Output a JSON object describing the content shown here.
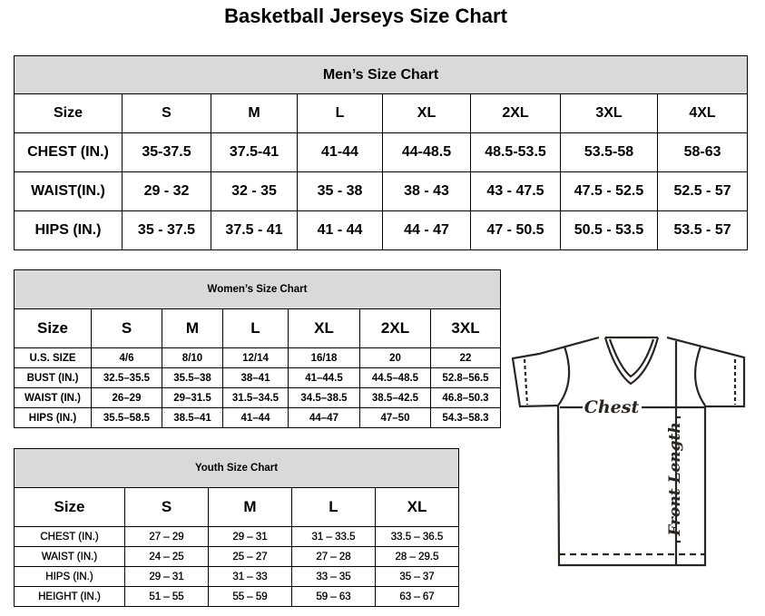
{
  "title": "Basketball Jerseys Size Chart",
  "men": {
    "title": "Men’s Size Chart",
    "header": [
      "Size",
      "S",
      "M",
      "L",
      "XL",
      "2XL",
      "3XL",
      "4XL"
    ],
    "rows": [
      [
        "CHEST (IN.)",
        "35-37.5",
        "37.5-41",
        "41-44",
        "44-48.5",
        "48.5-53.5",
        "53.5-58",
        "58-63"
      ],
      [
        "WAIST(IN.)",
        "29 - 32",
        "32 - 35",
        "35 - 38",
        "38 - 43",
        "43 - 47.5",
        "47.5 - 52.5",
        "52.5 - 57"
      ],
      [
        "HIPS (IN.)",
        "35 - 37.5",
        "37.5 - 41",
        "41 - 44",
        "44 - 47",
        "47 - 50.5",
        "50.5 - 53.5",
        "53.5 - 57"
      ]
    ]
  },
  "women": {
    "title": "Women’s Size Chart",
    "header": [
      "Size",
      "S",
      "M",
      "L",
      "XL",
      "2XL",
      "3XL"
    ],
    "rows": [
      [
        "U.S.  SIZE",
        "4/6",
        "8/10",
        "12/14",
        "16/18",
        "20",
        "22"
      ],
      [
        "BUST  (IN.)",
        "32.5–35.5",
        "35.5–38",
        "38–41",
        "41–44.5",
        "44.5–48.5",
        "52.8–56.5"
      ],
      [
        "WAIST  (IN.)",
        "26–29",
        "29–31.5",
        "31.5–34.5",
        "34.5–38.5",
        "38.5–42.5",
        "46.8–50.3"
      ],
      [
        "HIPS  (IN.)",
        "35.5–58.5",
        "38.5–41",
        "41–44",
        "44–47",
        "47–50",
        "54.3–58.3"
      ]
    ]
  },
  "youth": {
    "title": "Youth Size Chart",
    "header": [
      "Size",
      "S",
      "M",
      "L",
      "XL"
    ],
    "rows": [
      [
        "CHEST  (IN.)",
        "27  –  29",
        "29  –  31",
        "31  –  33.5",
        "33.5  –  36.5"
      ],
      [
        "WAIST  (IN.)",
        "24  –  25",
        "25  –  27",
        "27  –  28",
        "28  –  29.5"
      ],
      [
        "HIPS  (IN.)",
        "29  –  31",
        "31  –  33",
        "33  –  35",
        "35  –  37"
      ],
      [
        "HEIGHT  (IN.)",
        "51  –  55",
        "55  –  59",
        "59  –  63",
        "63  –  67"
      ]
    ]
  },
  "diagram": {
    "chest_label": "Chest",
    "length_label": "Front Length",
    "line_color": "#2b2522"
  }
}
